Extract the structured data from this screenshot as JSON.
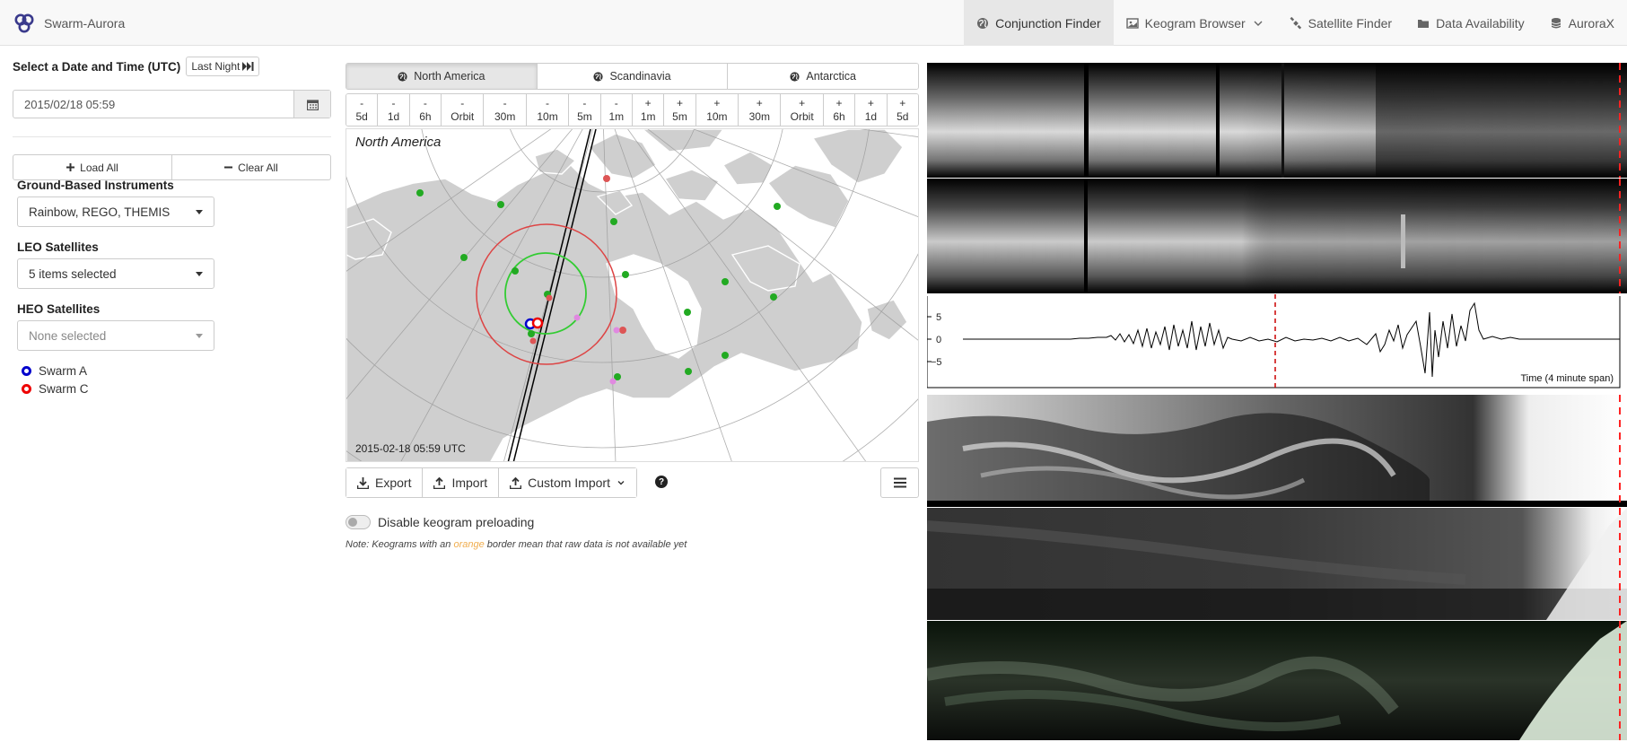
{
  "navbar": {
    "brand": "Swarm-Aurora",
    "items": [
      {
        "label": "Conjunction Finder",
        "icon": "globe-icon",
        "active": true
      },
      {
        "label": "Keogram Browser",
        "icon": "image-icon",
        "dropdown": true
      },
      {
        "label": "Satellite Finder",
        "icon": "satellite-icon"
      },
      {
        "label": "Data Availability",
        "icon": "folder-icon"
      },
      {
        "label": "AuroraX",
        "icon": "database-icon"
      }
    ]
  },
  "datetime": {
    "title": "Select a Date and Time (UTC)",
    "last_night_label": "Last Night",
    "value": "2015/02/18 05:59"
  },
  "actions": {
    "load_all": "Load All",
    "clear_all": "Clear All"
  },
  "ground": {
    "label": "Ground-Based Instruments",
    "value": "Rainbow, REGO, THEMIS"
  },
  "leo": {
    "label": "LEO Satellites",
    "value": "5 items selected"
  },
  "heo": {
    "label": "HEO Satellites",
    "value": "None selected"
  },
  "legend": [
    {
      "label": "Swarm A",
      "color": "#0000cc"
    },
    {
      "label": "Swarm C",
      "color": "#ee0000"
    }
  ],
  "regions": [
    {
      "label": "North America",
      "active": true
    },
    {
      "label": "Scandinavia",
      "active": false
    },
    {
      "label": "Antarctica",
      "active": false
    }
  ],
  "steps": [
    {
      "sign": "-",
      "label": "5d"
    },
    {
      "sign": "-",
      "label": "1d"
    },
    {
      "sign": "-",
      "label": "6h"
    },
    {
      "sign": "-",
      "label": "Orbit"
    },
    {
      "sign": "-",
      "label": "30m"
    },
    {
      "sign": "-",
      "label": "10m"
    },
    {
      "sign": "-",
      "label": "5m"
    },
    {
      "sign": "-",
      "label": "1m"
    },
    {
      "sign": "+",
      "label": "1m"
    },
    {
      "sign": "+",
      "label": "5m"
    },
    {
      "sign": "+",
      "label": "10m"
    },
    {
      "sign": "+",
      "label": "30m"
    },
    {
      "sign": "+",
      "label": "Orbit"
    },
    {
      "sign": "+",
      "label": "6h"
    },
    {
      "sign": "+",
      "label": "1d"
    },
    {
      "sign": "+",
      "label": "5d"
    }
  ],
  "map": {
    "title": "North America",
    "timestamp": "2015-02-18 05:59 UTC"
  },
  "toolbar": {
    "export": "Export",
    "import": "Import",
    "custom_import": "Custom Import"
  },
  "preload": {
    "label": "Disable keogram preloading"
  },
  "note": {
    "prefix": "Note: Keograms with an ",
    "highlight": "orange",
    "suffix": " border mean that raw data is not available yet"
  },
  "magplot": {
    "yticks": [
      "5",
      "0",
      "−5"
    ],
    "time_label": "Time (4 minute span)"
  },
  "colors": {
    "accent": "#f0ad4e",
    "ground_station": "#22aa22",
    "fov_inner": "#33cc33",
    "fov_outer": "#dd4444"
  }
}
